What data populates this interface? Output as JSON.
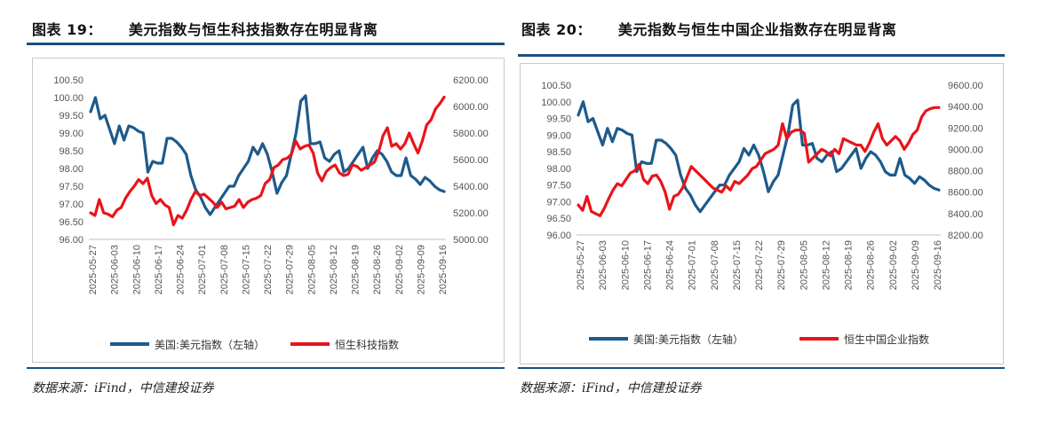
{
  "page": {
    "left_title_num": "图表 19：",
    "left_title": "美元指数与恒生科技指数存在明显背离",
    "right_title_num": "图表 20：",
    "right_title": "美元指数与恒生中国企业指数存在明显背离",
    "left_source": "数据来源：iFind，中信建投证券",
    "right_source": "数据来源：iFind，中信建投证券",
    "colors": {
      "usd": "#1d5a8c",
      "hk": "#e8141b",
      "rule": "#1a4f80"
    }
  },
  "chart_data": [
    {
      "type": "line",
      "title": "美元指数与恒生科技指数存在明显背离",
      "x_ticks": [
        "2025-05-27",
        "2025-06-03",
        "2025-06-10",
        "2025-06-17",
        "2025-06-24",
        "2025-07-01",
        "2025-07-08",
        "2025-07-15",
        "2025-07-22",
        "2025-07-29",
        "2025-08-05",
        "2025-08-12",
        "2025-08-19",
        "2025-08-26",
        "2025-09-02",
        "2025-09-09",
        "2025-09-16"
      ],
      "y_left_ticks": [
        "100.50",
        "100.00",
        "99.50",
        "99.00",
        "98.50",
        "98.00",
        "97.50",
        "97.00",
        "96.50",
        "96.00"
      ],
      "y_right_ticks": [
        "6200.00",
        "6000.00",
        "5800.00",
        "5600.00",
        "5400.00",
        "5200.00",
        "5000.00"
      ],
      "ylim_left": [
        96.0,
        100.5
      ],
      "ylim_right": [
        5000,
        6200
      ],
      "grid": false,
      "legend_position": "bottom",
      "series": [
        {
          "name": "美国:美元指数（左轴）",
          "axis": "left",
          "color": "#1d5a8c",
          "values": [
            99.6,
            100.0,
            99.4,
            99.5,
            99.1,
            98.7,
            99.2,
            98.8,
            99.2,
            99.15,
            99.05,
            99.0,
            97.9,
            98.2,
            98.15,
            98.15,
            98.85,
            98.85,
            98.75,
            98.6,
            98.4,
            97.8,
            97.4,
            97.2,
            96.9,
            96.7,
            96.9,
            97.1,
            97.3,
            97.5,
            97.5,
            97.8,
            98.0,
            98.2,
            98.6,
            98.4,
            98.7,
            98.4,
            97.9,
            97.3,
            97.6,
            97.8,
            98.4,
            99.0,
            99.9,
            100.05,
            98.7,
            98.7,
            98.75,
            98.3,
            98.2,
            98.4,
            98.5,
            97.9,
            98.0,
            98.2,
            98.4,
            98.6,
            98.0,
            98.3,
            98.5,
            98.4,
            98.2,
            97.9,
            97.8,
            97.8,
            98.3,
            97.8,
            97.7,
            97.55,
            97.75,
            97.65,
            97.5,
            97.4,
            97.35
          ]
        },
        {
          "name": "恒生科技指数",
          "axis": "right",
          "color": "#e8141b",
          "values": [
            5200,
            5180,
            5300,
            5200,
            5190,
            5170,
            5220,
            5240,
            5310,
            5360,
            5400,
            5450,
            5420,
            5460,
            5330,
            5270,
            5300,
            5260,
            5240,
            5110,
            5180,
            5160,
            5220,
            5300,
            5360,
            5330,
            5340,
            5310,
            5280,
            5240,
            5280,
            5230,
            5240,
            5250,
            5300,
            5240,
            5280,
            5300,
            5310,
            5330,
            5420,
            5450,
            5540,
            5560,
            5600,
            5610,
            5640,
            5740,
            5680,
            5700,
            5710,
            5650,
            5500,
            5440,
            5510,
            5540,
            5560,
            5500,
            5480,
            5490,
            5560,
            5550,
            5520,
            5540,
            5560,
            5580,
            5660,
            5780,
            5840,
            5700,
            5720,
            5680,
            5720,
            5800,
            5720,
            5650,
            5740,
            5860,
            5900,
            5980,
            6020,
            6070
          ]
        }
      ]
    },
    {
      "type": "line",
      "title": "美元指数与恒生中国企业指数存在明显背离",
      "x_ticks": [
        "2025-05-27",
        "2025-06-03",
        "2025-06-10",
        "2025-06-17",
        "2025-06-24",
        "2025-07-01",
        "2025-07-08",
        "2025-07-15",
        "2025-07-22",
        "2025-07-29",
        "2025-08-05",
        "2025-08-12",
        "2025-08-19",
        "2025-08-26",
        "2025-09-02",
        "2025-09-09",
        "2025-09-16"
      ],
      "y_left_ticks": [
        "100.50",
        "100.00",
        "99.50",
        "99.00",
        "98.50",
        "98.00",
        "97.50",
        "97.00",
        "96.50",
        "96.00"
      ],
      "y_right_ticks": [
        "9600.00",
        "9400.00",
        "9200.00",
        "9000.00",
        "8800.00",
        "8600.00",
        "8400.00",
        "8200.00"
      ],
      "ylim_left": [
        96.0,
        100.5
      ],
      "ylim_right": [
        8200,
        9600
      ],
      "grid": false,
      "legend_position": "bottom",
      "series": [
        {
          "name": "美国:美元指数（左轴）",
          "axis": "left",
          "color": "#1d5a8c",
          "values": [
            99.6,
            100.0,
            99.4,
            99.5,
            99.1,
            98.7,
            99.2,
            98.8,
            99.2,
            99.15,
            99.05,
            99.0,
            97.9,
            98.2,
            98.15,
            98.15,
            98.85,
            98.85,
            98.75,
            98.6,
            98.4,
            97.8,
            97.4,
            97.2,
            96.9,
            96.7,
            96.9,
            97.1,
            97.3,
            97.5,
            97.5,
            97.8,
            98.0,
            98.2,
            98.6,
            98.4,
            98.7,
            98.4,
            97.9,
            97.3,
            97.6,
            97.8,
            98.4,
            99.0,
            99.9,
            100.05,
            98.7,
            98.7,
            98.75,
            98.3,
            98.2,
            98.4,
            98.5,
            97.9,
            98.0,
            98.2,
            98.4,
            98.6,
            98.0,
            98.3,
            98.5,
            98.4,
            98.2,
            97.9,
            97.8,
            97.8,
            98.3,
            97.8,
            97.7,
            97.55,
            97.75,
            97.65,
            97.5,
            97.4,
            97.35
          ]
        },
        {
          "name": "恒生中国企业指数",
          "axis": "right",
          "color": "#e8141b",
          "values": [
            8480,
            8430,
            8560,
            8420,
            8400,
            8380,
            8450,
            8540,
            8620,
            8680,
            8660,
            8720,
            8780,
            8800,
            8860,
            8720,
            8680,
            8750,
            8760,
            8700,
            8600,
            8440,
            8560,
            8580,
            8640,
            8740,
            8840,
            8800,
            8760,
            8720,
            8680,
            8640,
            8620,
            8600,
            8660,
            8620,
            8700,
            8680,
            8720,
            8760,
            8820,
            8840,
            8900,
            8960,
            8980,
            9000,
            9040,
            9240,
            9100,
            9160,
            9180,
            9180,
            9150,
            8880,
            8920,
            8960,
            9000,
            8980,
            8940,
            9000,
            8960,
            9100,
            9080,
            9060,
            9040,
            9040,
            8980,
            9060,
            9160,
            9240,
            9100,
            9040,
            9080,
            9120,
            9080,
            9000,
            9060,
            9140,
            9180,
            9300,
            9360,
            9380,
            9390,
            9390
          ]
        }
      ]
    }
  ]
}
